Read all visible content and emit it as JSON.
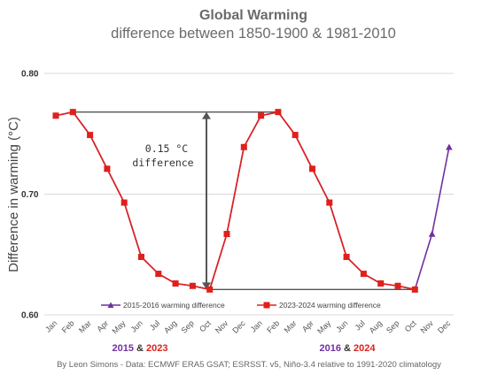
{
  "chart_data": {
    "type": "line",
    "title": "Global Warming",
    "subtitle": "difference between 1850-1900 & 1981-2010",
    "ylabel": "Difference in warming (°C)",
    "ylim": [
      0.6,
      0.8
    ],
    "yticks": [
      "0.60",
      "0.70",
      "0.80"
    ],
    "grid": true,
    "legend_position": "bottom",
    "categories": [
      "Jan",
      "Feb",
      "Mar",
      "Apr",
      "May",
      "Jun",
      "Jul",
      "Aug",
      "Sep",
      "Oct",
      "Nov",
      "Dec",
      "Jan",
      "Feb",
      "Mar",
      "Apr",
      "May",
      "Jun",
      "Jul",
      "Aug",
      "Sep",
      "Oct",
      "Nov",
      "Dec"
    ],
    "series": [
      {
        "name": "2015-2016 warming difference",
        "color": "#7030a0",
        "marker": "triangle",
        "values": [
          0.765,
          0.768,
          0.749,
          0.721,
          0.693,
          0.648,
          0.634,
          0.626,
          0.624,
          0.621,
          0.667,
          0.739,
          0.765,
          0.768,
          0.749,
          0.721,
          0.693,
          0.648,
          0.634,
          0.626,
          0.624,
          0.621,
          0.667,
          0.739
        ]
      },
      {
        "name": "2023-2024 warming difference",
        "color": "#e0201b",
        "marker": "square",
        "values": [
          0.765,
          0.768,
          0.749,
          0.721,
          0.693,
          0.648,
          0.634,
          0.626,
          0.624,
          0.621,
          0.667,
          0.739,
          0.765,
          0.768,
          0.749,
          0.721,
          0.693,
          0.648,
          0.634,
          0.626,
          0.624,
          0.621,
          null,
          null
        ]
      }
    ],
    "annotation": {
      "line1": "0.15 °C",
      "line2": "difference",
      "value": 0.15,
      "upper": 0.768,
      "lower": 0.621
    },
    "year_labels": {
      "left": {
        "first": "2015",
        "amp": "&",
        "second": "2023"
      },
      "right": {
        "first": "2016",
        "amp": "&",
        "second": "2024"
      }
    },
    "colors": {
      "grid": "#d9d9d9",
      "annotation": "#555555",
      "year_first": "#7030a0",
      "year_second": "#e0201b",
      "amp": "#333333"
    }
  },
  "credit": "By Leon Simons - Data: ECMWF ERA5 GSAT; ESRSST. v5, Niño-3.4 relative to 1991-2020 climatology"
}
